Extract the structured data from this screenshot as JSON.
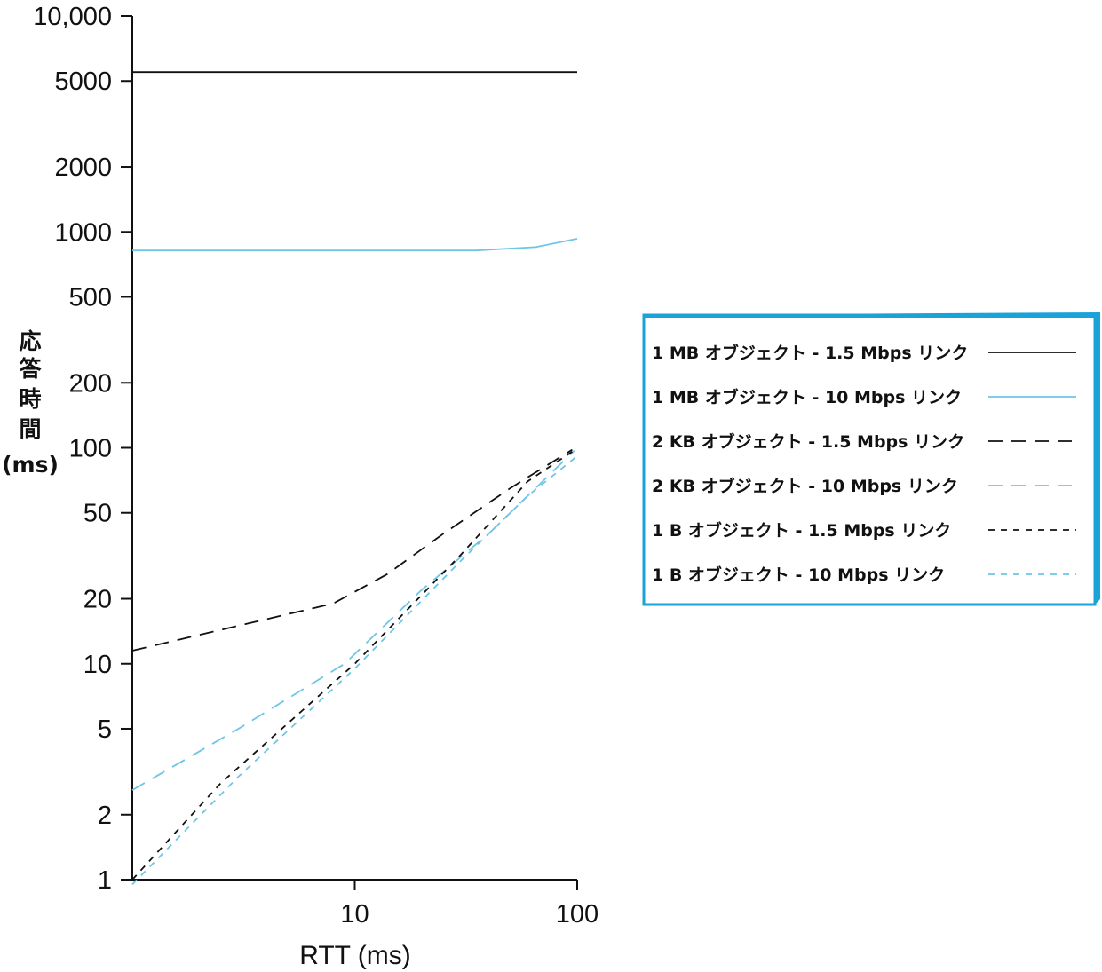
{
  "chart_data": {
    "type": "line",
    "xlabel": "RTT (ms)",
    "ylabel": [
      "応",
      "答",
      "時",
      "間",
      "(ms)"
    ],
    "x_scale": "log",
    "y_scale": "log",
    "xlim": [
      1,
      100
    ],
    "ylim": [
      1,
      10000
    ],
    "x_ticks": [
      {
        "value": 10,
        "label": "10"
      },
      {
        "value": 100,
        "label": "100"
      }
    ],
    "y_ticks": [
      {
        "value": 1,
        "label": "1"
      },
      {
        "value": 2,
        "label": "2"
      },
      {
        "value": 5,
        "label": "5"
      },
      {
        "value": 10,
        "label": "10"
      },
      {
        "value": 20,
        "label": "20"
      },
      {
        "value": 50,
        "label": "50"
      },
      {
        "value": 100,
        "label": "100"
      },
      {
        "value": 200,
        "label": "200"
      },
      {
        "value": 500,
        "label": "500"
      },
      {
        "value": 1000,
        "label": "1000"
      },
      {
        "value": 2000,
        "label": "2000"
      },
      {
        "value": 5000,
        "label": "5000"
      },
      {
        "value": 10000,
        "label": "10,000"
      }
    ],
    "grid": false,
    "legend_position": "right",
    "series": [
      {
        "name": "1 MB オブジェクト - 1.5 Mbps リンク",
        "color": "#111111",
        "dash": "solid",
        "points": [
          [
            1,
            5500
          ],
          [
            100,
            5500
          ]
        ]
      },
      {
        "name": "1 MB オブジェクト - 10 Mbps リンク",
        "color": "#6ec6e6",
        "dash": "solid",
        "points": [
          [
            1,
            820
          ],
          [
            35,
            820
          ],
          [
            65,
            850
          ],
          [
            100,
            930
          ]
        ]
      },
      {
        "name": "2 KB オブジェクト - 1.5 Mbps リンク",
        "color": "#111111",
        "dash": "long",
        "points": [
          [
            1,
            11.5
          ],
          [
            3,
            15
          ],
          [
            8,
            19
          ],
          [
            14,
            26
          ],
          [
            25,
            40
          ],
          [
            50,
            65
          ],
          [
            95,
            98
          ]
        ]
      },
      {
        "name": "2 KB オブジェクト - 10 Mbps リンク",
        "color": "#6ec6e6",
        "dash": "long",
        "points": [
          [
            1,
            2.6
          ],
          [
            3,
            5
          ],
          [
            9,
            10
          ],
          [
            20,
            22
          ],
          [
            40,
            40
          ],
          [
            97,
            97
          ]
        ]
      },
      {
        "name": "1 B オブジェクト - 1.5 Mbps リンク",
        "color": "#111111",
        "dash": "short",
        "points": [
          [
            1,
            1
          ],
          [
            2.5,
            2.8
          ],
          [
            10,
            10
          ],
          [
            30,
            32
          ],
          [
            60,
            70
          ],
          [
            98,
            98
          ]
        ]
      },
      {
        "name": "1 B オブジェクト - 10 Mbps リンク",
        "color": "#6ec6e6",
        "dash": "short",
        "points": [
          [
            1,
            0.95
          ],
          [
            3,
            3
          ],
          [
            10,
            9.5
          ],
          [
            30,
            30
          ],
          [
            60,
            60
          ],
          [
            98,
            90
          ]
        ]
      }
    ]
  },
  "legend": {
    "border_color": "#1aa3d9",
    "rows": [
      "1 MB オブジェクト - 1.5 Mbps リンク",
      "1 MB オブジェクト - 10 Mbps リンク",
      "2 KB オブジェクト - 1.5 Mbps リンク",
      "2 KB オブジェクト - 10 Mbps リンク",
      "1 B オブジェクト - 1.5 Mbps リンク",
      "1 B オブジェクト - 10 Mbps リンク"
    ]
  }
}
